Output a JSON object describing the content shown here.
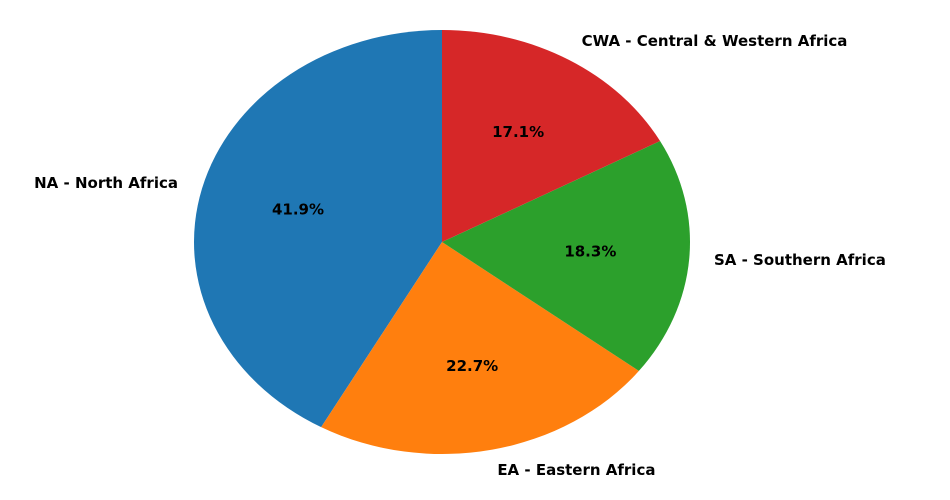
{
  "chart_data": {
    "type": "pie",
    "categories": [
      "NA - North Africa",
      "EA - Eastern Africa",
      "SA - Southern Africa",
      "CWA - Central & Western Africa"
    ],
    "values": [
      41.9,
      22.7,
      18.3,
      17.1
    ],
    "value_labels": [
      "41.9%",
      "22.7%",
      "18.3%",
      "17.1%"
    ],
    "colors": [
      "#1f77b4",
      "#ff7f0e",
      "#2ca02c",
      "#d62728"
    ]
  }
}
